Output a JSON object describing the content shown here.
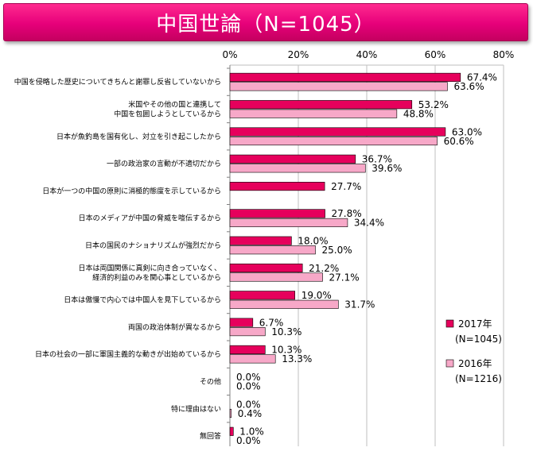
{
  "title": "中国世論（N=1045）",
  "colors": {
    "series_2017": "#e6005c",
    "series_2016": "#f7a8c8",
    "bar_stroke": "#000000",
    "grid": "#bfbfbf"
  },
  "chart_data": {
    "type": "hbar",
    "x_ticks": [
      "0%",
      "20%",
      "40%",
      "60%",
      "80%"
    ],
    "xlim": [
      0,
      80
    ],
    "grid": true,
    "legend_position": "bottom-right",
    "categories": [
      [
        "中国を侵略した歴史についてきちんと謝罪し反省していないから"
      ],
      [
        "米国やその他の国と連携して",
        "中国を包囲しようとしているから"
      ],
      [
        "日本が魚釣島を国有化し、対立を引き起こしたから"
      ],
      [
        "一部の政治家の言動が不適切だから"
      ],
      [
        "日本が一つの中国の原則に消極的態度を示しているから"
      ],
      [
        "日本のメディアが中国の脅威を喧伝するから"
      ],
      [
        "日本の国民のナショナリズムが強烈だから"
      ],
      [
        "日本は両国関係に真剣に向き合っていなく、",
        "経済的利益のみを関心事としているから"
      ],
      [
        "日本は傲慢で内心では中国人を見下しているから"
      ],
      [
        "両国の政治体制が異なるから"
      ],
      [
        "日本の社会の一部に軍国主義的な動きが出始めているから"
      ],
      [
        "その他"
      ],
      [
        "特に理由はない"
      ],
      [
        "無回答"
      ]
    ],
    "series": [
      {
        "name": "2017年",
        "sub": "(N=1045)",
        "values": [
          67.4,
          53.2,
          63.0,
          36.7,
          27.7,
          27.8,
          18.0,
          21.2,
          19.0,
          6.7,
          10.3,
          0.0,
          0.0,
          1.0
        ],
        "labels": [
          "67.4%",
          "53.2%",
          "63.0%",
          "36.7%",
          "27.7%",
          "27.8%",
          "18.0%",
          "21.2%",
          "19.0%",
          "6.7%",
          "10.3%",
          "0.0%",
          "0.0%",
          "1.0%"
        ]
      },
      {
        "name": "2016年",
        "sub": "(N=1216)",
        "values": [
          63.6,
          48.8,
          60.6,
          39.6,
          null,
          34.4,
          25.0,
          27.1,
          31.7,
          10.3,
          13.3,
          0.0,
          0.4,
          0.0
        ],
        "labels": [
          "63.6%",
          "48.8%",
          "60.6%",
          "39.6%",
          "",
          "34.4%",
          "25.0%",
          "27.1%",
          "31.7%",
          "10.3%",
          "13.3%",
          "0.0%",
          "0.4%",
          "0.0%"
        ]
      }
    ]
  }
}
